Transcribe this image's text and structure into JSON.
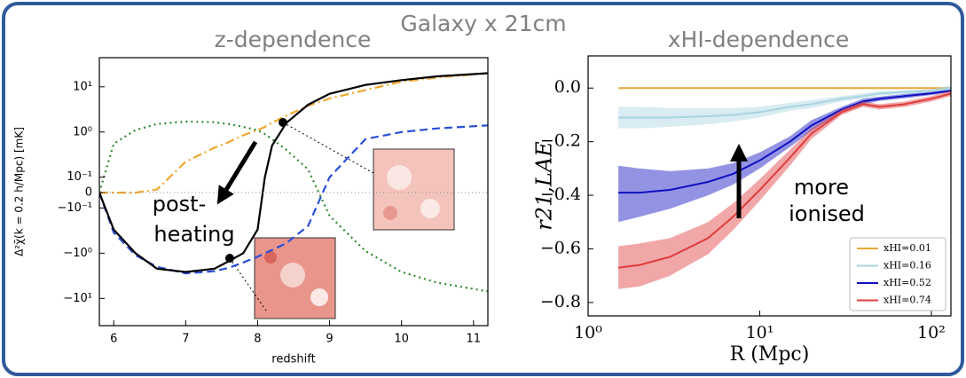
{
  "title": "Galaxy x 21cm",
  "chart_data": [
    {
      "type": "line",
      "title": "z-dependence",
      "xlabel": "redshift",
      "ylabel": "Δ²χ̄(k = 0.2 h/Mpc) [mK]",
      "yscale": "symlog",
      "linthresh": 0.1,
      "xlim": [
        5.8,
        11.2
      ],
      "xticks": [
        6,
        7,
        8,
        9,
        10,
        11
      ],
      "ylim": [
        -40,
        44
      ],
      "yticks": [
        {
          "value": 10,
          "label": "10¹"
        },
        {
          "value": 1,
          "label": "10⁰"
        },
        {
          "value": 0.1,
          "label": "10⁻¹"
        },
        0,
        {
          "value": -0.1,
          "label": "−10⁻¹"
        },
        {
          "value": -1,
          "label": "−10⁰"
        },
        {
          "value": -10,
          "label": "−10¹"
        }
      ],
      "annotations": [
        "post-",
        "heating"
      ],
      "x": [
        5.8,
        6,
        6.3,
        6.6,
        7,
        7.4,
        7.6,
        7.8,
        8,
        8.1,
        8.2,
        8.4,
        8.7,
        9,
        9.5,
        10,
        10.5,
        11.2
      ],
      "series": [
        {
          "color": "#2e8b2e",
          "dash": "2,4",
          "values": [
            0,
            0.55,
            1.1,
            1.5,
            1.7,
            1.65,
            1.5,
            1.3,
            1.1,
            0.9,
            0.7,
            0.4,
            0.15,
            -0.15,
            -0.9,
            -2.6,
            -4.5,
            -7
          ]
        },
        {
          "color": "#f0a830",
          "dash": "10,4,2,4",
          "values": [
            0,
            0,
            0,
            0.02,
            0.22,
            0.45,
            0.6,
            0.85,
            1.1,
            1.3,
            1.6,
            2.3,
            3.8,
            5.5,
            8.5,
            13,
            16,
            20
          ]
        },
        {
          "color": "#2a4fd8",
          "dash": "9,5",
          "values": [
            0,
            -0.35,
            -1.1,
            -2,
            -2.8,
            -2.5,
            -2.1,
            -1.6,
            -1.2,
            -1,
            -0.85,
            -0.6,
            -0.25,
            0.1,
            0.7,
            1.0,
            1.2,
            1.4
          ]
        },
        {
          "color": "#000000",
          "dash": "",
          "values": [
            0,
            -0.3,
            -1,
            -2.2,
            -2.6,
            -2.2,
            -1.5,
            -1,
            -0.3,
            0.1,
            0.5,
            1.6,
            4,
            7,
            11,
            14,
            17,
            20
          ]
        }
      ]
    },
    {
      "type": "band",
      "title": "xHI-dependence",
      "xlabel": "R (Mpc)",
      "ylabel": "r21,LAE",
      "xscale": "log",
      "xlim": [
        1,
        130
      ],
      "xticks": [
        {
          "value": 1,
          "label": "10⁰"
        },
        {
          "value": 10,
          "label": "10¹"
        },
        {
          "value": 100,
          "label": "10²"
        }
      ],
      "ylim": [
        -0.85,
        0.12
      ],
      "yticks": [
        {
          "value": 0,
          "label": "0.0"
        },
        {
          "value": -0.2,
          "label": "−0.2"
        },
        {
          "value": -0.4,
          "label": "−0.4"
        },
        {
          "value": -0.6,
          "label": "−0.6"
        },
        {
          "value": -0.8,
          "label": "−0.8"
        }
      ],
      "annotations": [
        "more",
        "ionised"
      ],
      "legend": "lower right",
      "x": [
        1.5,
        2,
        3,
        5,
        7,
        10,
        15,
        20,
        30,
        40,
        50,
        70,
        100,
        130
      ],
      "series": [
        {
          "name": "xHI=0.01",
          "color": "#e8a838",
          "values": [
            0,
            0,
            0,
            0,
            0,
            0,
            0,
            0,
            0,
            0,
            0,
            0,
            0,
            0
          ]
        },
        {
          "name": "xHI=0.16",
          "color": "#a8d4e0",
          "values": [
            -0.11,
            -0.11,
            -0.11,
            -0.105,
            -0.1,
            -0.09,
            -0.07,
            -0.06,
            -0.04,
            -0.03,
            -0.02,
            -0.015,
            -0.01,
            0
          ],
          "upper": [
            -0.07,
            -0.07,
            -0.075,
            -0.075,
            -0.075,
            -0.07,
            -0.055,
            -0.045,
            -0.03,
            -0.02,
            -0.012,
            -0.008,
            -0.004,
            0.01
          ],
          "lower": [
            -0.15,
            -0.15,
            -0.145,
            -0.135,
            -0.125,
            -0.11,
            -0.085,
            -0.075,
            -0.05,
            -0.04,
            -0.028,
            -0.022,
            -0.016,
            -0.01
          ]
        },
        {
          "name": "xHI=0.52",
          "color": "#1010c0",
          "values": [
            -0.39,
            -0.39,
            -0.38,
            -0.35,
            -0.32,
            -0.27,
            -0.2,
            -0.14,
            -0.08,
            -0.05,
            -0.04,
            -0.03,
            -0.02,
            -0.01
          ],
          "upper": [
            -0.29,
            -0.3,
            -0.31,
            -0.3,
            -0.28,
            -0.24,
            -0.18,
            -0.12,
            -0.07,
            -0.04,
            -0.032,
            -0.022,
            -0.014,
            -0.005
          ],
          "lower": [
            -0.5,
            -0.48,
            -0.45,
            -0.4,
            -0.36,
            -0.3,
            -0.22,
            -0.16,
            -0.09,
            -0.06,
            -0.048,
            -0.038,
            -0.026,
            -0.015
          ]
        },
        {
          "name": "xHI=0.74",
          "color": "#e03c3c",
          "values": [
            -0.67,
            -0.66,
            -0.63,
            -0.56,
            -0.48,
            -0.38,
            -0.26,
            -0.17,
            -0.09,
            -0.06,
            -0.07,
            -0.06,
            -0.04,
            -0.02
          ],
          "upper": [
            -0.59,
            -0.58,
            -0.56,
            -0.5,
            -0.43,
            -0.34,
            -0.23,
            -0.15,
            -0.08,
            -0.05,
            -0.06,
            -0.05,
            -0.03,
            -0.01
          ],
          "lower": [
            -0.75,
            -0.74,
            -0.7,
            -0.62,
            -0.53,
            -0.42,
            -0.29,
            -0.19,
            -0.1,
            -0.07,
            -0.08,
            -0.07,
            -0.05,
            -0.03
          ]
        }
      ]
    }
  ]
}
